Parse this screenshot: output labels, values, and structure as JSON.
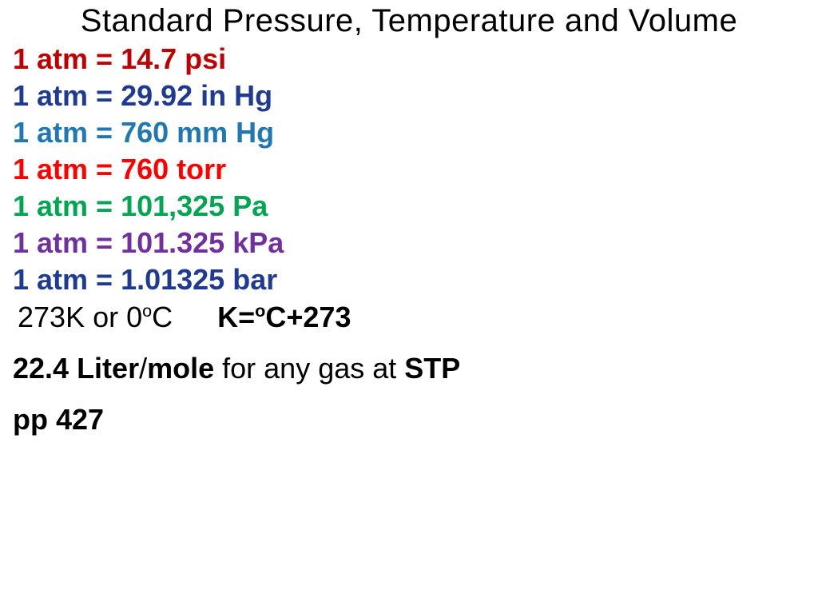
{
  "title": "Standard Pressure, Temperature and Volume",
  "conversions": [
    {
      "text": "1 atm = 14.7 psi",
      "color": "#c00000"
    },
    {
      "text": "1 atm = 29.92 in Hg",
      "color": "#1f3a93"
    },
    {
      "text": "1 atm = 760 mm Hg",
      "color": "#1f77b4"
    },
    {
      "text": "1 atm = 760 torr",
      "color": "#ff0000"
    },
    {
      "text": "1 atm = 101,325 Pa",
      "color": "#00a651"
    },
    {
      "text": "1 atm = 101.325 kPa",
      "color": "#7030a0"
    },
    {
      "text": "1 atm = 1.01325 bar",
      "color": "#1f3a93"
    }
  ],
  "temperature": {
    "kelvin": "273K or 0",
    "c_label": "C",
    "formula_prefix": "K=",
    "formula_suffix": "C+273",
    "degree": "o"
  },
  "volume": {
    "value": "22.4 Liter",
    "slash": "/",
    "mole": "mole",
    "middle": " for any gas at ",
    "stp": "STP"
  },
  "page_ref": "pp 427"
}
